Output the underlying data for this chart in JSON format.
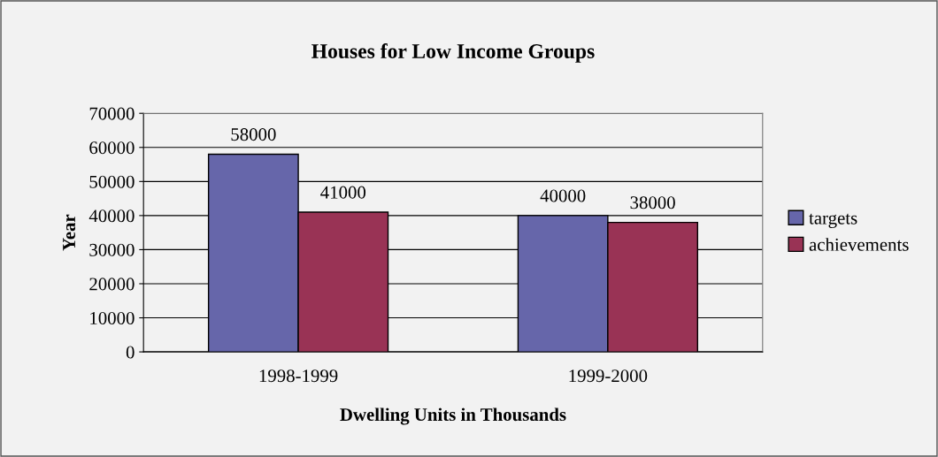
{
  "chart_data": {
    "type": "bar",
    "title": "Houses for Low Income Groups",
    "xlabel": "Dwelling Units in Thousands",
    "ylabel": "Year",
    "categories": [
      "1998-1999",
      "1999-2000"
    ],
    "series": [
      {
        "name": "targets",
        "color": "#6666aa",
        "values": [
          58000,
          40000
        ]
      },
      {
        "name": "achievements",
        "color": "#993355",
        "values": [
          41000,
          38000
        ]
      }
    ],
    "ylim": [
      0,
      70000
    ],
    "yticks": [
      0,
      10000,
      20000,
      30000,
      40000,
      50000,
      60000,
      70000
    ],
    "grid": "y",
    "legend": "right",
    "data_labels": true
  }
}
